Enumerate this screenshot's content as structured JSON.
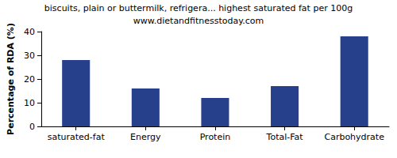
{
  "chart_data": {
    "type": "bar",
    "title": "biscuits, plain or buttermilk, refrigera... highest saturated fat per 100g",
    "subtitle": "www.dietandfitnesstoday.com",
    "y_label": "Percentage of RDA (%)",
    "categories": [
      "saturated-fat",
      "Energy",
      "Protein",
      "Total-Fat",
      "Carbohydrate"
    ],
    "values": [
      28,
      16,
      12,
      17,
      38
    ],
    "color": "#26408b",
    "ylim": [
      0,
      40
    ],
    "yticks": [
      0,
      10,
      20,
      30,
      40
    ],
    "grid": false
  }
}
